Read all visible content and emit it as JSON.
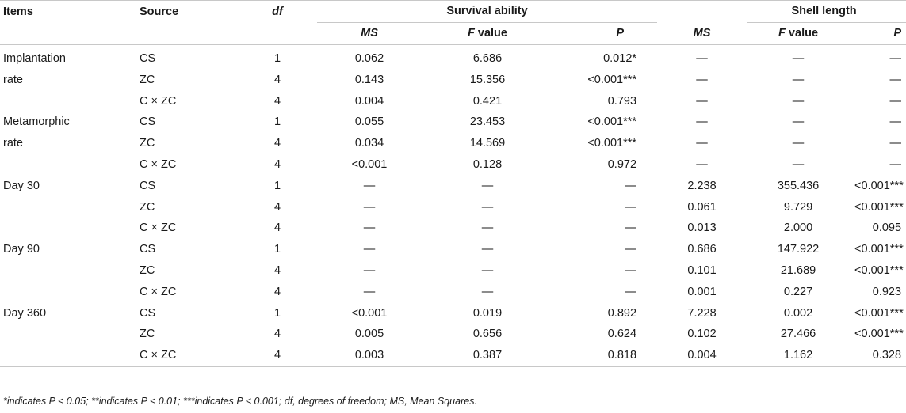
{
  "headers": {
    "items": "Items",
    "source": "Source",
    "df": "df",
    "survival": "Survival ability",
    "shell": "Shell length",
    "ms": "MS",
    "f_italic": "F",
    "f_rest": " value",
    "p": "P"
  },
  "rows": [
    {
      "item": "Implantation",
      "source": "CS",
      "df": "1",
      "s_ms": "0.062",
      "s_f": "6.686",
      "s_p": "0.012*",
      "l_ms": "—",
      "l_f": "—",
      "l_p": "—"
    },
    {
      "item": "rate",
      "source": "ZC",
      "df": "4",
      "s_ms": "0.143",
      "s_f": "15.356",
      "s_p": "<0.001***",
      "l_ms": "—",
      "l_f": "—",
      "l_p": "—"
    },
    {
      "item": "",
      "source": "C × ZC",
      "df": "4",
      "s_ms": "0.004",
      "s_f": "0.421",
      "s_p": "0.793",
      "l_ms": "—",
      "l_f": "—",
      "l_p": "—"
    },
    {
      "item": "Metamorphic",
      "source": "CS",
      "df": "1",
      "s_ms": "0.055",
      "s_f": "23.453",
      "s_p": "<0.001***",
      "l_ms": "—",
      "l_f": "—",
      "l_p": "—"
    },
    {
      "item": "rate",
      "source": "ZC",
      "df": "4",
      "s_ms": "0.034",
      "s_f": "14.569",
      "s_p": "<0.001***",
      "l_ms": "—",
      "l_f": "—",
      "l_p": "—"
    },
    {
      "item": "",
      "source": "C × ZC",
      "df": "4",
      "s_ms": "<0.001",
      "s_f": "0.128",
      "s_p": "0.972",
      "l_ms": "—",
      "l_f": "—",
      "l_p": "—"
    },
    {
      "item": "Day 30",
      "source": "CS",
      "df": "1",
      "s_ms": "—",
      "s_f": "—",
      "s_p": "—",
      "l_ms": "2.238",
      "l_f": "355.436",
      "l_p": "<0.001***"
    },
    {
      "item": "",
      "source": "ZC",
      "df": "4",
      "s_ms": "—",
      "s_f": "—",
      "s_p": "—",
      "l_ms": "0.061",
      "l_f": "9.729",
      "l_p": "<0.001***"
    },
    {
      "item": "",
      "source": "C × ZC",
      "df": "4",
      "s_ms": "—",
      "s_f": "—",
      "s_p": "—",
      "l_ms": "0.013",
      "l_f": "2.000",
      "l_p": "0.095"
    },
    {
      "item": "Day 90",
      "source": "CS",
      "df": "1",
      "s_ms": "—",
      "s_f": "—",
      "s_p": "—",
      "l_ms": "0.686",
      "l_f": "147.922",
      "l_p": "<0.001***"
    },
    {
      "item": "",
      "source": "ZC",
      "df": "4",
      "s_ms": "—",
      "s_f": "—",
      "s_p": "—",
      "l_ms": "0.101",
      "l_f": "21.689",
      "l_p": "<0.001***"
    },
    {
      "item": "",
      "source": "C × ZC",
      "df": "4",
      "s_ms": "—",
      "s_f": "—",
      "s_p": "—",
      "l_ms": "0.001",
      "l_f": "0.227",
      "l_p": "0.923"
    },
    {
      "item": "Day 360",
      "source": "CS",
      "df": "1",
      "s_ms": "<0.001",
      "s_f": "0.019",
      "s_p": "0.892",
      "l_ms": "7.228",
      "l_f": "0.002",
      "l_p": "<0.001***"
    },
    {
      "item": "",
      "source": "ZC",
      "df": "4",
      "s_ms": "0.005",
      "s_f": "0.656",
      "s_p": "0.624",
      "l_ms": "0.102",
      "l_f": "27.466",
      "l_p": "<0.001***"
    },
    {
      "item": "",
      "source": "C × ZC",
      "df": "4",
      "s_ms": "0.003",
      "s_f": "0.387",
      "s_p": "0.818",
      "l_ms": "0.004",
      "l_f": "1.162",
      "l_p": "0.328"
    }
  ],
  "footnote": "*indicates P < 0.05; **indicates P < 0.01; ***indicates P < 0.001; df, degrees of freedom; MS, Mean Squares."
}
